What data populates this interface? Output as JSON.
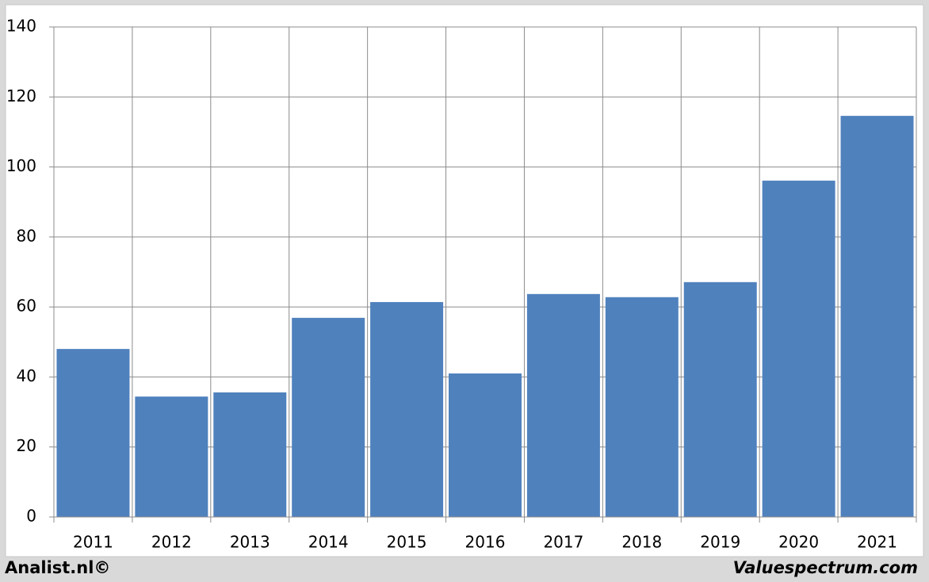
{
  "chart_data": {
    "type": "bar",
    "categories": [
      "2011",
      "2012",
      "2013",
      "2014",
      "2015",
      "2016",
      "2017",
      "2018",
      "2019",
      "2020",
      "2021"
    ],
    "values": [
      48.0,
      34.4,
      35.6,
      56.9,
      61.4,
      41.0,
      63.7,
      62.8,
      67.1,
      96.1,
      114.6
    ],
    "color": "#4f81bd",
    "ylim": [
      0,
      140
    ],
    "yticks": [
      0,
      20,
      40,
      60,
      80,
      100,
      120,
      140
    ],
    "grid": true,
    "source": "Analist.nl©",
    "credit": "Valuespectrum.com"
  }
}
